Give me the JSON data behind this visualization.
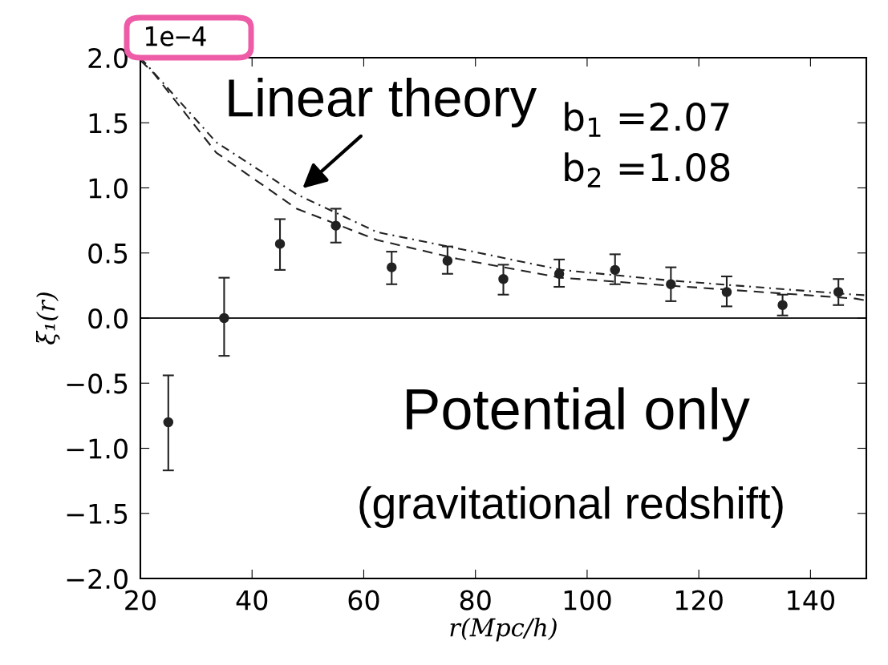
{
  "chart_data": {
    "type": "scatter",
    "xlabel": "r(Mpc/h)",
    "ylabel": "ξ₁(r)",
    "xlim": [
      20,
      150
    ],
    "xticks": [
      20,
      40,
      60,
      80,
      100,
      120,
      140
    ],
    "ylim": [
      -2,
      2
    ],
    "yticks": [
      {
        "value": -2,
        "label": "−2.0"
      },
      {
        "value": -1.5,
        "label": "−1.5"
      },
      {
        "value": -1,
        "label": "−1.0"
      },
      {
        "value": -0.5,
        "label": "−0.5"
      },
      {
        "value": 0,
        "label": "0.0"
      },
      {
        "value": 0.5,
        "label": "0.5"
      },
      {
        "value": 1,
        "label": "1.0"
      },
      {
        "value": 1.5,
        "label": "1.5"
      },
      {
        "value": 2,
        "label": "2.0"
      }
    ],
    "grid": false,
    "ref_lines": [
      {
        "axis": "y",
        "value": 0,
        "color": "#222222",
        "line_style": "solid"
      }
    ],
    "series": [
      {
        "color": "#222222",
        "marker": "circle",
        "x": [
          25,
          35,
          45,
          55,
          65,
          75,
          85,
          95,
          105,
          115,
          125,
          135,
          145
        ],
        "values": [
          -0.8,
          0.0,
          0.57,
          0.71,
          0.39,
          0.44,
          0.3,
          0.34,
          0.37,
          0.26,
          0.2,
          0.1,
          0.2
        ],
        "errors": [
          [
            -1.17,
            -0.44
          ],
          [
            -0.29,
            0.31
          ],
          [
            0.37,
            0.76
          ],
          [
            0.58,
            0.84
          ],
          [
            0.26,
            0.51
          ],
          [
            0.34,
            0.55
          ],
          [
            0.18,
            0.41
          ],
          [
            0.24,
            0.45
          ],
          [
            0.26,
            0.49
          ],
          [
            0.13,
            0.39
          ],
          [
            0.09,
            0.32
          ],
          [
            0.02,
            0.18
          ],
          [
            0.1,
            0.3
          ]
        ]
      },
      {
        "type": "line",
        "color": "#222222",
        "line_style": "dashed",
        "x": [
          20,
          22.2,
          33.6,
          48,
          62.4,
          76.8,
          95.4,
          114.5,
          148,
          150
        ],
        "values": [
          1.98,
          1.89,
          1.27,
          0.84,
          0.6,
          0.455,
          0.31,
          0.25,
          0.15,
          0.135
        ]
      },
      {
        "type": "line",
        "color": "#222222",
        "line_style": "dashdot",
        "x": [
          20,
          33.6,
          48,
          62.4,
          76.8,
          95.4,
          114.5,
          148,
          150
        ],
        "values": [
          2.0,
          1.35,
          0.95,
          0.66,
          0.535,
          0.37,
          0.29,
          0.18,
          0.175
        ]
      }
    ],
    "annotations": [
      "Linear theory",
      "1e−4",
      "b$_{1}$ =2.07",
      "b$_{2}$ =1.08",
      "Potential only",
      "(gravitational redshift)"
    ]
  }
}
